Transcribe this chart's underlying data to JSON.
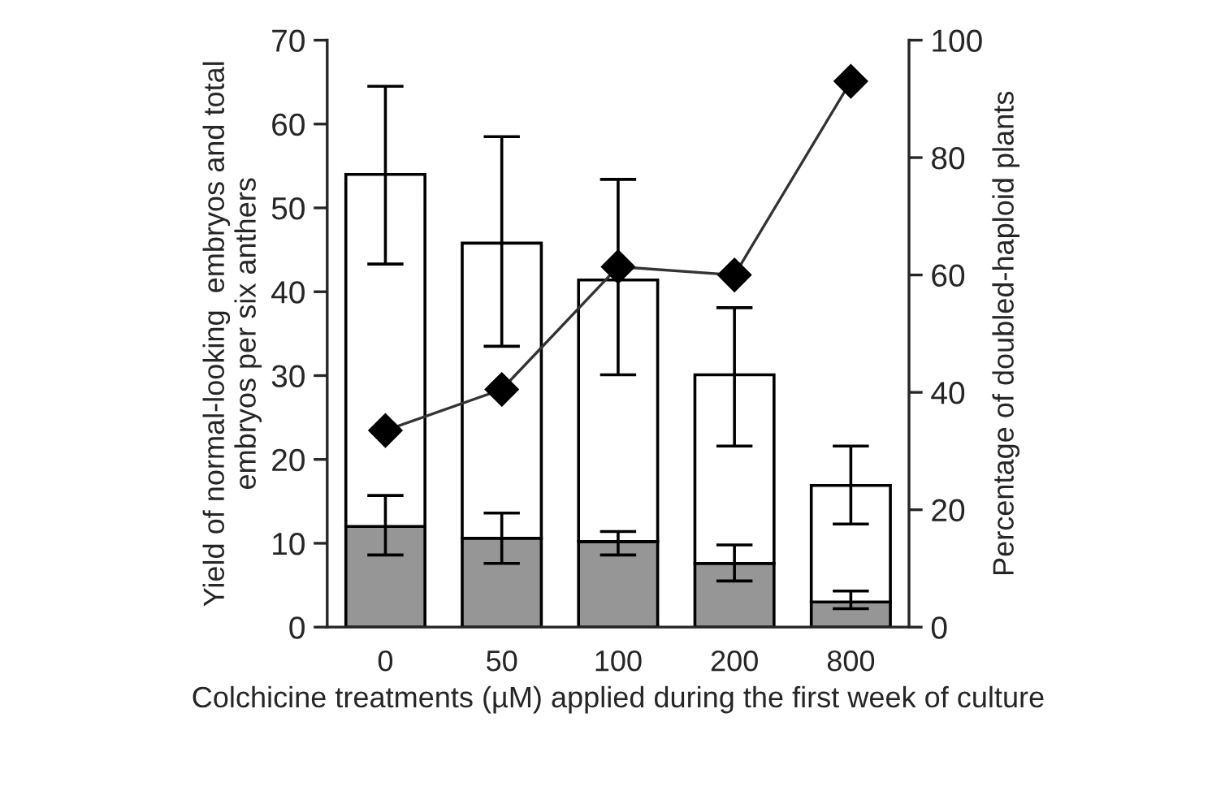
{
  "chart_data": {
    "type": "bar",
    "stacked": true,
    "xlabel": "Colchicine treatments (µM) applied during the first week of culture",
    "ylabel": "Yield of normal-looking  embryos and total embryos per six anthers",
    "y2label": "Percentage of doubled-haploid plants",
    "categories": [
      "0",
      "50",
      "100",
      "200",
      "800"
    ],
    "series": [
      {
        "color": "#969696",
        "values": [
          12.0,
          10.6,
          10.2,
          7.6,
          3.0
        ],
        "errors": [
          [
            8.6,
            15.7
          ],
          [
            7.6,
            13.6
          ],
          [
            8.6,
            11.4
          ],
          [
            5.5,
            9.8
          ],
          [
            2.2,
            4.3
          ]
        ]
      },
      {
        "color": "#ffffff",
        "values": [
          42.0,
          35.2,
          31.2,
          22.5,
          13.9
        ],
        "errors": [
          [
            43.3,
            64.5
          ],
          [
            33.5,
            58.5
          ],
          [
            30.1,
            53.4
          ],
          [
            21.6,
            38.1
          ],
          [
            12.3,
            21.6
          ]
        ]
      },
      {
        "type": "line",
        "axis": "y2",
        "color": "#000000",
        "marker": "diamond",
        "line_style": "solid",
        "values": [
          33.5,
          40.5,
          61.4,
          60.0,
          93.0
        ]
      }
    ],
    "ylim": [
      0,
      70
    ],
    "yticks": [
      0,
      10,
      20,
      30,
      40,
      50,
      60,
      70
    ],
    "y2lim": [
      0,
      100
    ],
    "y2ticks": [
      0,
      20,
      40,
      60,
      80,
      100
    ],
    "grid": false,
    "legend": false
  }
}
